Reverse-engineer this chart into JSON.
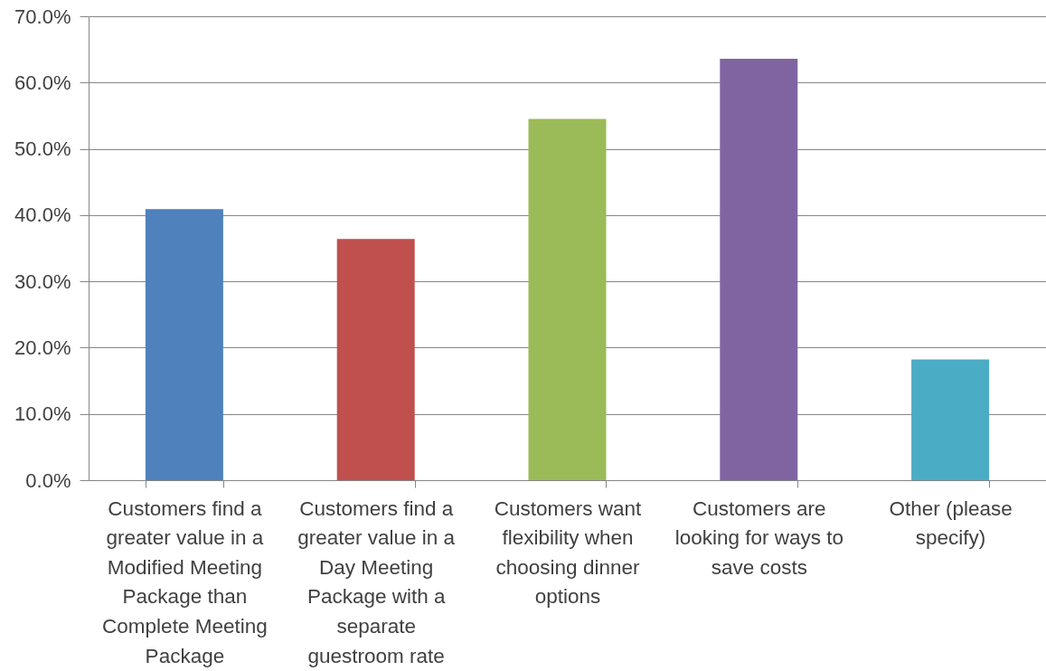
{
  "chart_data": {
    "type": "bar",
    "categories": [
      "Customers find a greater value in a Modified Meeting Package than Complete Meeting Package",
      "Customers find a greater value in a Day Meeting Package with a separate guestroom rate",
      "Customers want flexibility when choosing dinner options",
      "Customers are looking for ways to save costs",
      "Other (please specify)"
    ],
    "values": [
      40.9,
      36.4,
      54.5,
      63.6,
      18.2
    ],
    "colors": [
      "#4f81bd",
      "#c0504d",
      "#9bbb59",
      "#8064a2",
      "#4bacc6"
    ],
    "ylim": [
      0,
      70
    ],
    "yticks": [
      {
        "value": 0,
        "label": "0.0%"
      },
      {
        "value": 10,
        "label": "10.0%"
      },
      {
        "value": 20,
        "label": "20.0%"
      },
      {
        "value": 30,
        "label": "30.0%"
      },
      {
        "value": 40,
        "label": "40.0%"
      },
      {
        "value": 50,
        "label": "50.0%"
      },
      {
        "value": 60,
        "label": "60.0%"
      },
      {
        "value": 70,
        "label": "70.0%"
      }
    ],
    "grid": "y"
  }
}
